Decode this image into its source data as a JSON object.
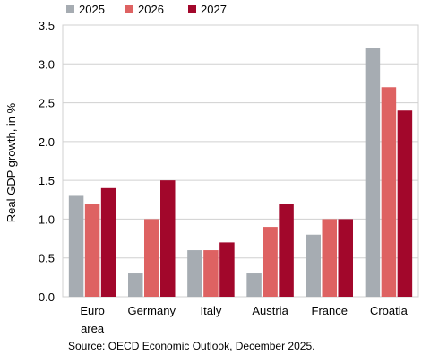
{
  "chart_data": {
    "type": "bar",
    "title": "",
    "xlabel": "",
    "ylabel": "Real GDP growth, in %",
    "ylim": [
      0,
      3.5
    ],
    "yticks": [
      0.0,
      0.5,
      1.0,
      1.5,
      2.0,
      2.5,
      3.0,
      3.5
    ],
    "ytick_labels": [
      "0.0",
      "0.5",
      "1.0",
      "1.5",
      "2.0",
      "2.5",
      "3.0",
      "3.5"
    ],
    "grid": "horizontal",
    "legend_position": "top",
    "categories": [
      [
        "Euro",
        "area"
      ],
      [
        "Germany"
      ],
      [
        "Italy"
      ],
      [
        "Austria"
      ],
      [
        "France"
      ],
      [
        "Croatia"
      ]
    ],
    "series": [
      {
        "name": "2025",
        "color": "#a6acb2",
        "values": [
          1.3,
          0.3,
          0.6,
          0.3,
          0.8,
          3.2
        ]
      },
      {
        "name": "2026",
        "color": "#de6262",
        "values": [
          1.2,
          1.0,
          0.6,
          0.9,
          1.0,
          2.7
        ]
      },
      {
        "name": "2027",
        "color": "#a2072b",
        "values": [
          1.4,
          1.5,
          0.7,
          1.2,
          1.0,
          2.4
        ]
      }
    ]
  },
  "source_note": "Source: OECD Economic Outlook, December 2025."
}
